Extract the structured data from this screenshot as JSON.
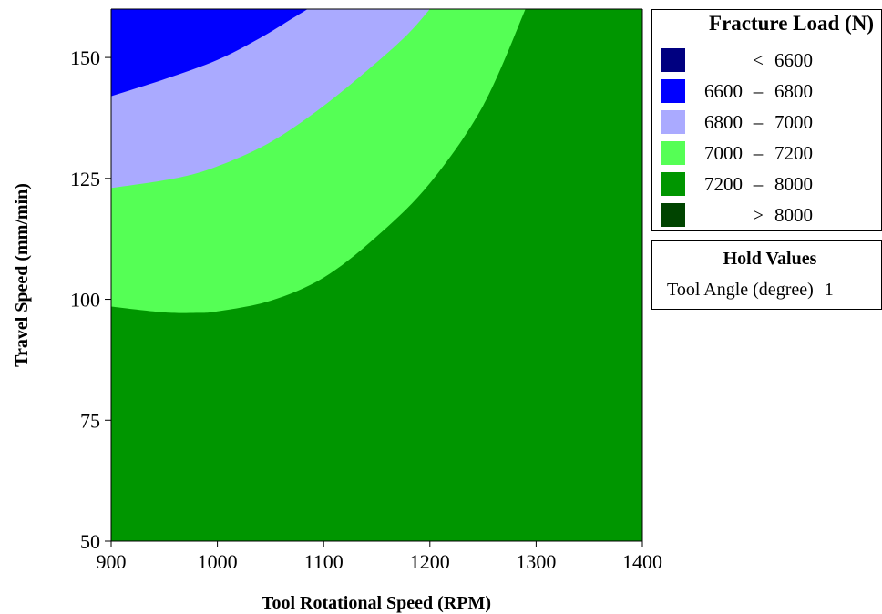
{
  "chart_data": {
    "type": "contour",
    "title": "",
    "xlabel": "Tool Rotational Speed (RPM)",
    "ylabel": "Travel Speed (mm/min)",
    "xlim": [
      900,
      1400
    ],
    "ylim": [
      50,
      160
    ],
    "xticks": [
      "900",
      "1000",
      "1100",
      "1200",
      "1300",
      "1400"
    ],
    "yticks": [
      "50",
      "75",
      "100",
      "125",
      "150"
    ],
    "grid": false,
    "legend_position": "right",
    "boundaries": [
      {
        "level": 6800,
        "points": [
          [
            900,
            142
          ],
          [
            950,
            145.5
          ],
          [
            1000,
            149.5
          ],
          [
            1040,
            154
          ],
          [
            1070,
            158
          ],
          [
            1085,
            160
          ]
        ]
      },
      {
        "level": 7000,
        "points": [
          [
            900,
            123
          ],
          [
            960,
            125
          ],
          [
            1000,
            127.5
          ],
          [
            1050,
            132.5
          ],
          [
            1100,
            140
          ],
          [
            1150,
            149
          ],
          [
            1180,
            155
          ],
          [
            1200,
            160
          ]
        ]
      },
      {
        "level": 7200,
        "points": [
          [
            900,
            98.5
          ],
          [
            950,
            97.3
          ],
          [
            980,
            97.2
          ],
          [
            1000,
            97.5
          ],
          [
            1050,
            99.7
          ],
          [
            1100,
            104.5
          ],
          [
            1150,
            113
          ],
          [
            1200,
            124
          ],
          [
            1250,
            140
          ],
          [
            1290,
            160
          ]
        ]
      }
    ],
    "regions": [
      {
        "range": "< 6600",
        "color": "#000080"
      },
      {
        "range": "6600 – 6800",
        "color": "#0000ff"
      },
      {
        "range": "6800 – 7000",
        "color": "#aaaaff"
      },
      {
        "range": "7000 – 7200",
        "color": "#55ff55"
      },
      {
        "range": "7200 – 8000",
        "color": "#009600"
      },
      {
        "range": "> 8000",
        "color": "#004400"
      }
    ]
  },
  "legend": {
    "title": "Fracture Load (N)",
    "items": [
      {
        "low": "",
        "dash": "<",
        "high": "6600",
        "color": "#000080"
      },
      {
        "low": "6600",
        "dash": "–",
        "high": "6800",
        "color": "#0000ff"
      },
      {
        "low": "6800",
        "dash": "–",
        "high": "7000",
        "color": "#aaaaff"
      },
      {
        "low": "7000",
        "dash": "–",
        "high": "7200",
        "color": "#55ff55"
      },
      {
        "low": "7200",
        "dash": "–",
        "high": "8000",
        "color": "#009600"
      },
      {
        "low": "",
        "dash": ">",
        "high": "8000",
        "color": "#004400"
      }
    ]
  },
  "hold_values": {
    "title": "Hold Values",
    "label": "Tool Angle (degree)",
    "value": "1"
  }
}
